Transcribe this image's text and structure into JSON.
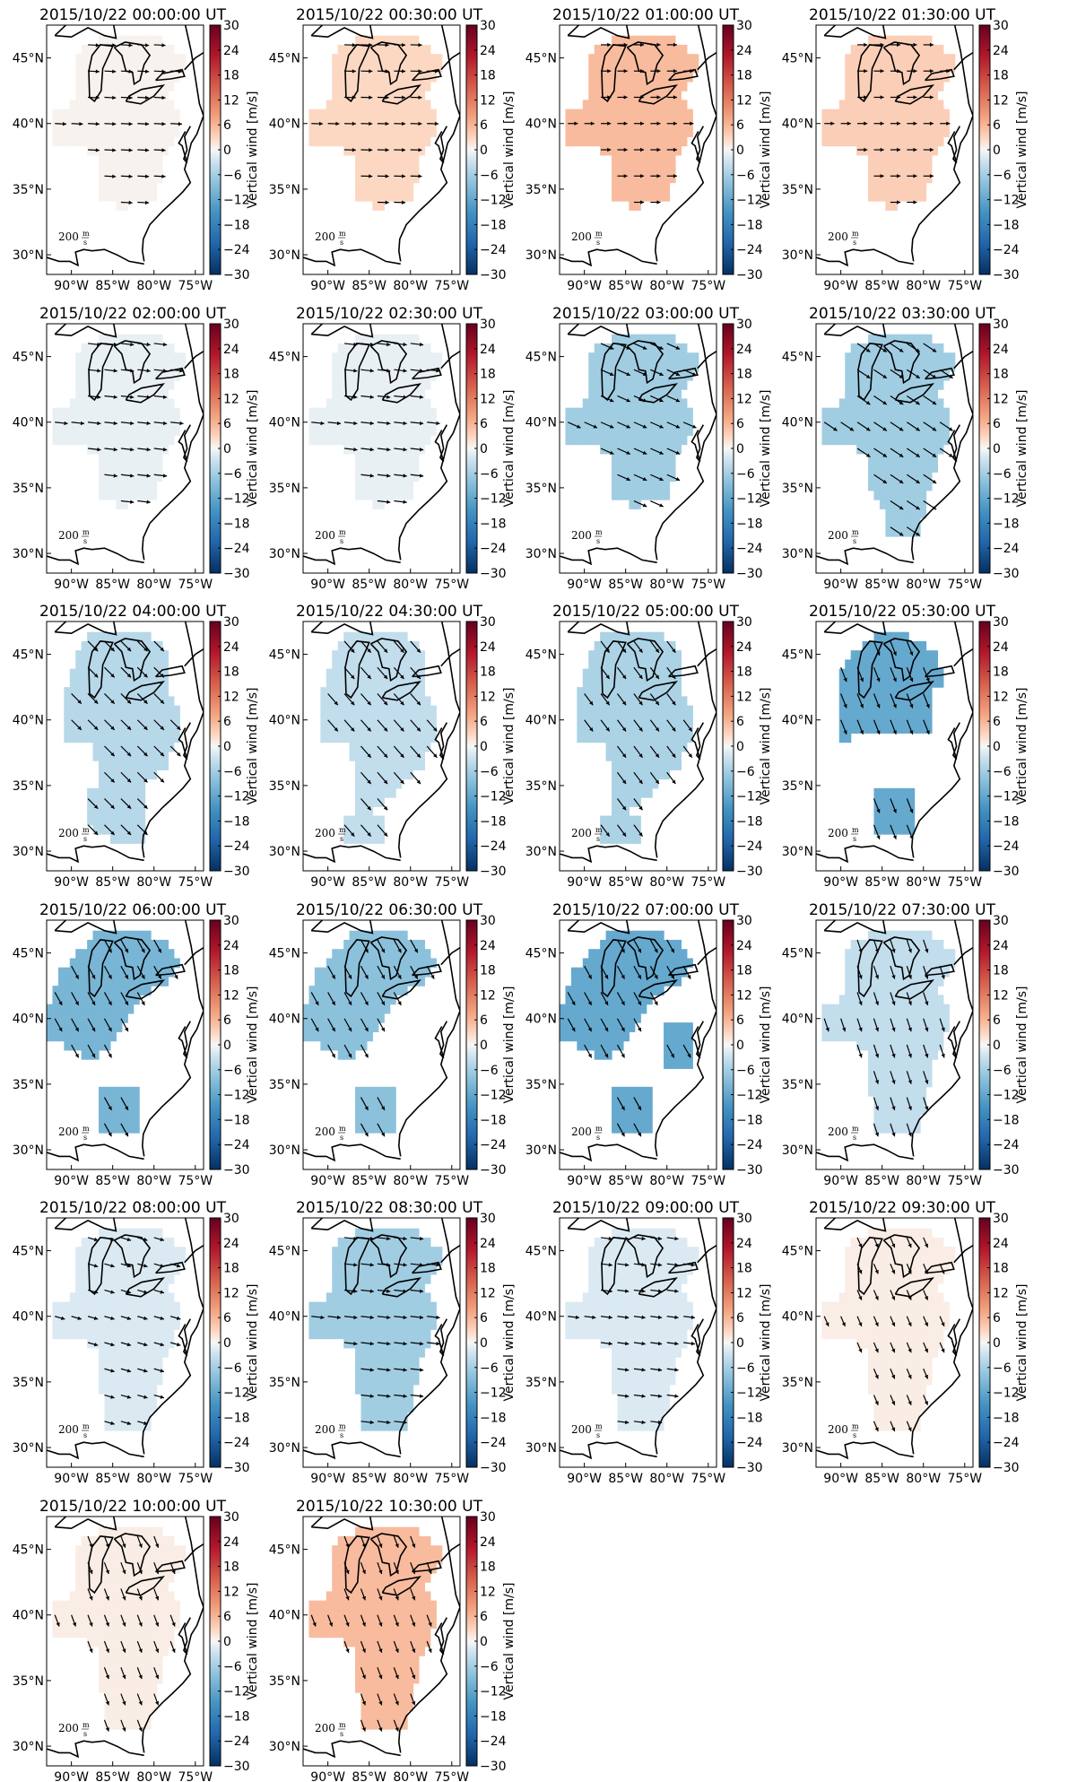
{
  "chart_data": {
    "type": "heatmap",
    "description_units": {
      "color": "Vertical wind [m/s]",
      "arrows": "horizontal wind, scale 200 m/s"
    },
    "colorbar": {
      "label": "Vertical wind [m/s]",
      "range": [
        -30,
        30
      ],
      "ticks": [
        -30,
        -24,
        -18,
        -12,
        -6,
        0,
        6,
        12,
        18,
        24,
        30
      ],
      "tick_labels": [
        "−30",
        "−24",
        "−18",
        "−12",
        "−6",
        "0",
        "6",
        "12",
        "18",
        "24",
        "30"
      ],
      "colormap": "RdBu_r"
    },
    "xaxis": {
      "ticks": [
        -90,
        -85,
        -80,
        -75
      ],
      "tick_labels": [
        "90°W",
        "85°W",
        "80°W",
        "75°W"
      ],
      "range": [
        -93,
        -74
      ]
    },
    "yaxis": {
      "ticks": [
        30,
        35,
        40,
        45
      ],
      "tick_labels": [
        "30°N",
        "35°N",
        "40°N",
        "45°N"
      ],
      "range": [
        28.5,
        47.5
      ]
    },
    "scale_label": "200",
    "scale_unit_num": "m",
    "scale_unit_den": "s",
    "panels": [
      {
        "title": "2015/10/22 00:00:00 UT",
        "w": 0.5,
        "region": "A",
        "wind": {
          "u": 8,
          "v": -0.4
        }
      },
      {
        "title": "2015/10/22 00:30:00 UT",
        "w": 3,
        "region": "A",
        "wind": {
          "u": 8,
          "v": -0.2
        }
      },
      {
        "title": "2015/10/22 01:00:00 UT",
        "w": 6,
        "region": "A",
        "wind": {
          "u": 7,
          "v": 0
        }
      },
      {
        "title": "2015/10/22 01:30:00 UT",
        "w": 4,
        "region": "A",
        "wind": {
          "u": 7,
          "v": 0
        }
      },
      {
        "title": "2015/10/22 02:00:00 UT",
        "w": -1,
        "region": "A",
        "wind": {
          "u": 9,
          "v": -1
        }
      },
      {
        "title": "2015/10/22 02:30:00 UT",
        "w": -1,
        "region": "A",
        "wind": {
          "u": 9,
          "v": -1
        }
      },
      {
        "title": "2015/10/22 03:00:00 UT",
        "w": -7,
        "region": "A",
        "wind": {
          "u": 9,
          "v": -4
        }
      },
      {
        "title": "2015/10/22 03:30:00 UT",
        "w": -7,
        "region": "B",
        "wind": {
          "u": 9,
          "v": -6
        }
      },
      {
        "title": "2015/10/22 04:00:00 UT",
        "w": -5,
        "region": "C",
        "wind": {
          "u": 7,
          "v": -7
        }
      },
      {
        "title": "2015/10/22 04:30:00 UT",
        "w": -4,
        "region": "C",
        "wind": {
          "u": 7,
          "v": -8
        }
      },
      {
        "title": "2015/10/22 05:00:00 UT",
        "w": -6,
        "region": "C",
        "wind": {
          "u": 6,
          "v": -8
        }
      },
      {
        "title": "2015/10/22 05:30:00 UT",
        "w": -13,
        "region": "D",
        "wind": {
          "u": 4,
          "v": -10
        }
      },
      {
        "title": "2015/10/22 06:00:00 UT",
        "w": -11,
        "region": "E",
        "wind": {
          "u": 5,
          "v": -9
        }
      },
      {
        "title": "2015/10/22 06:30:00 UT",
        "w": -9,
        "region": "E",
        "wind": {
          "u": 5,
          "v": -9
        }
      },
      {
        "title": "2015/10/22 07:00:00 UT",
        "w": -13,
        "region": "F",
        "wind": {
          "u": 5,
          "v": -9
        }
      },
      {
        "title": "2015/10/22 07:30:00 UT",
        "w": -4,
        "region": "G",
        "wind": {
          "u": 3,
          "v": -9
        }
      },
      {
        "title": "2015/10/22 08:00:00 UT",
        "w": -2,
        "region": "G",
        "wind": {
          "u": 7,
          "v": -2
        }
      },
      {
        "title": "2015/10/22 08:30:00 UT",
        "w": -7,
        "region": "G",
        "wind": {
          "u": 9,
          "v": -1
        }
      },
      {
        "title": "2015/10/22 09:00:00 UT",
        "w": -2,
        "region": "G",
        "wind": {
          "u": 8,
          "v": -1
        }
      },
      {
        "title": "2015/10/22 09:30:00 UT",
        "w": 1,
        "region": "G",
        "wind": {
          "u": 3,
          "v": -7
        }
      },
      {
        "title": "2015/10/22 10:00:00 UT",
        "w": 1,
        "region": "G",
        "wind": {
          "u": 3,
          "v": -8
        }
      },
      {
        "title": "2015/10/22 10:30:00 UT",
        "w": 6,
        "region": "G",
        "wind": {
          "u": 3,
          "v": -8
        }
      }
    ],
    "regions": {
      "A": [
        [
          -92.5,
          41
        ],
        [
          -90,
          41
        ],
        [
          -89,
          45.8
        ],
        [
          -84,
          47
        ],
        [
          -79,
          46.5
        ],
        [
          -76,
          45
        ],
        [
          -77,
          43
        ],
        [
          -78.5,
          42.5
        ],
        [
          -77,
          41
        ],
        [
          -77,
          39
        ],
        [
          -79,
          37.5
        ],
        [
          -79.5,
          34.5
        ],
        [
          -84,
          33.5
        ],
        [
          -87,
          34.5
        ],
        [
          -87,
          37.5
        ],
        [
          -89,
          38.5
        ],
        [
          -92.5,
          38.5
        ]
      ],
      "B": [
        [
          -92.5,
          41
        ],
        [
          -90,
          41
        ],
        [
          -89,
          45.8
        ],
        [
          -84,
          47
        ],
        [
          -79,
          46.5
        ],
        [
          -76,
          45
        ],
        [
          -77,
          43
        ],
        [
          -78.5,
          42.5
        ],
        [
          -77,
          41
        ],
        [
          -77,
          39
        ],
        [
          -78,
          37.5
        ],
        [
          -79,
          35.5
        ],
        [
          -80.5,
          31
        ],
        [
          -84.5,
          31
        ],
        [
          -85,
          34
        ],
        [
          -87,
          35
        ],
        [
          -87,
          37.5
        ],
        [
          -89,
          38.5
        ],
        [
          -92.5,
          38.5
        ]
      ],
      "C": [
        [
          -91,
          41.5
        ],
        [
          -89.5,
          44.5
        ],
        [
          -88,
          46.5
        ],
        [
          -84,
          47
        ],
        [
          -80,
          46.3
        ],
        [
          -78,
          45
        ],
        [
          -78,
          43
        ],
        [
          -78.5,
          42.5
        ],
        [
          -77,
          41
        ],
        [
          -77,
          39
        ],
        [
          -78.5,
          36.5
        ],
        [
          -81,
          35
        ],
        [
          -84.5,
          33
        ],
        [
          -87,
          33
        ],
        [
          -87,
          37
        ],
        [
          -88,
          38.5
        ],
        [
          -91,
          38.5
        ]
      ],
      "D": [
        [
          -90,
          40
        ],
        [
          -90,
          44
        ],
        [
          -86,
          46.5
        ],
        [
          -82,
          46.5
        ],
        [
          -78.5,
          45
        ],
        [
          -77.5,
          43
        ],
        [
          -79,
          42
        ],
        [
          -79,
          39
        ],
        [
          -86,
          39
        ],
        [
          -90,
          38.5
        ]
      ],
      "E": [
        [
          -92.8,
          41
        ],
        [
          -91.5,
          43.5
        ],
        [
          -87,
          46.5
        ],
        [
          -83,
          47
        ],
        [
          -78.5,
          46
        ],
        [
          -77,
          44
        ],
        [
          -78.5,
          42.5
        ],
        [
          -81,
          42
        ],
        [
          -83,
          40
        ],
        [
          -85.5,
          37.5
        ],
        [
          -88,
          37
        ],
        [
          -92.8,
          38.5
        ]
      ],
      "F": [
        [
          -92.8,
          41
        ],
        [
          -91.5,
          43.5
        ],
        [
          -87,
          46.5
        ],
        [
          -83,
          47
        ],
        [
          -78.5,
          46
        ],
        [
          -77,
          44
        ],
        [
          -78.5,
          42.5
        ],
        [
          -81,
          42
        ],
        [
          -83,
          40
        ],
        [
          -85.5,
          37.5
        ],
        [
          -88,
          37
        ],
        [
          -92.8,
          38.5
        ]
      ],
      "G": [
        [
          -92.5,
          41
        ],
        [
          -90,
          41
        ],
        [
          -89,
          45.8
        ],
        [
          -84,
          47
        ],
        [
          -79,
          46.5
        ],
        [
          -76,
          45
        ],
        [
          -77,
          43
        ],
        [
          -78.5,
          42.5
        ],
        [
          -77,
          41
        ],
        [
          -77,
          39
        ],
        [
          -78.5,
          37
        ],
        [
          -79.5,
          34.5
        ],
        [
          -80.5,
          31
        ],
        [
          -86,
          31
        ],
        [
          -86,
          34
        ],
        [
          -87,
          35
        ],
        [
          -87,
          37.5
        ],
        [
          -89,
          38.5
        ],
        [
          -92.5,
          38.5
        ]
      ]
    },
    "extra_blobs": {
      "3": [],
      "11": [
        [
          [
            -86,
            35
          ],
          [
            -86,
            31
          ],
          [
            -81,
            31
          ],
          [
            -81,
            35
          ]
        ]
      ],
      "12": [
        [
          [
            -87,
            34.5
          ],
          [
            -87,
            31
          ],
          [
            -82,
            31
          ],
          [
            -82,
            34.5
          ]
        ]
      ],
      "13": [
        [
          [
            -87,
            34.5
          ],
          [
            -87,
            31
          ],
          [
            -82,
            31
          ],
          [
            -82,
            34.5
          ]
        ]
      ],
      "14": [
        [
          [
            -87,
            34.5
          ],
          [
            -87,
            31
          ],
          [
            -82,
            31
          ],
          [
            -82,
            34.5
          ]
        ],
        [
          [
            -80.5,
            39.5
          ],
          [
            -80.5,
            36.5
          ],
          [
            -77,
            36.5
          ],
          [
            -77,
            39.5
          ]
        ]
      ],
      "8": [
        [
          [
            -88,
            35
          ],
          [
            -88,
            32
          ],
          [
            -84,
            30.5
          ],
          [
            -81,
            31
          ],
          [
            -81,
            35
          ],
          [
            -84,
            35
          ]
        ]
      ],
      "9": [
        [
          [
            -88,
            33
          ],
          [
            -88,
            30.5
          ],
          [
            -83,
            30.5
          ],
          [
            -83,
            33
          ]
        ]
      ],
      "10": [
        [
          [
            -88,
            33
          ],
          [
            -88,
            30.5
          ],
          [
            -83,
            30.5
          ],
          [
            -83,
            33
          ]
        ]
      ]
    }
  }
}
